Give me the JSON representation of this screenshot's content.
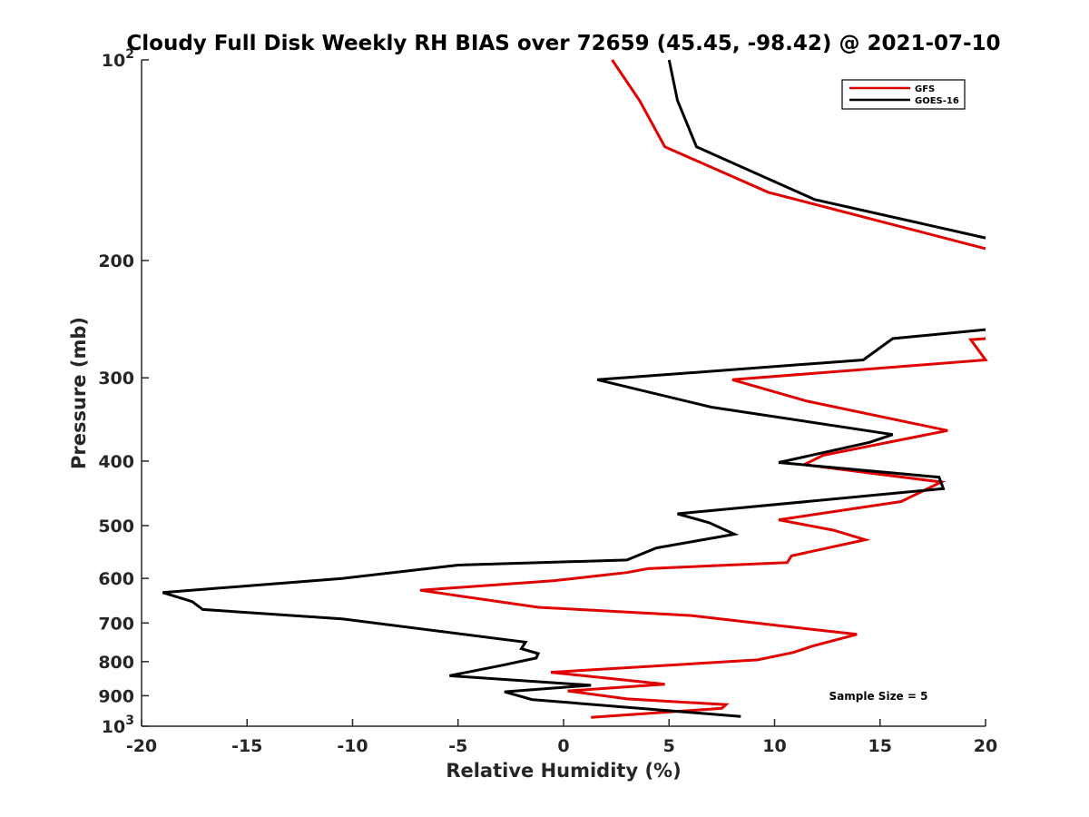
{
  "chart_data": {
    "type": "line",
    "title": "Cloudy Full Disk Weekly RH BIAS over 72659 (45.45, -98.42) @ 2021-07-10",
    "xlabel": "Relative Humidity (%)",
    "ylabel": "Pressure (mb)",
    "xlim": [
      -20,
      20
    ],
    "ylim": [
      100,
      1000
    ],
    "y_scale": "log",
    "y_reversed": true,
    "grid": false,
    "legend_position": "top-right",
    "x_ticks": [
      -20,
      -15,
      -10,
      -5,
      0,
      5,
      10,
      15,
      20
    ],
    "x_tick_labels": [
      "-20",
      "-15",
      "-10",
      "-5",
      "0",
      "5",
      "10",
      "15",
      "20"
    ],
    "y_ticks": [
      100,
      200,
      300,
      400,
      500,
      600,
      700,
      800,
      900,
      1000
    ],
    "y_tick_labels": [
      "10^2",
      "200",
      "300",
      "400",
      "500",
      "600",
      "700",
      "800",
      "900",
      "10^3"
    ],
    "annotation": "Sample Size = 5",
    "series": [
      {
        "name": "GFS",
        "color": "#e00000",
        "points": [
          [
            2.3,
            100
          ],
          [
            3.6,
            115
          ],
          [
            4.8,
            135
          ],
          [
            9.7,
            158
          ],
          [
            20.0,
            192
          ],
          [
            null,
            null
          ],
          [
            20.0,
            262
          ],
          [
            19.3,
            263
          ],
          [
            20.0,
            282
          ],
          [
            8.0,
            302
          ],
          [
            11.5,
            325
          ],
          [
            18.2,
            360
          ],
          [
            12.3,
            392
          ],
          [
            11.4,
            405
          ],
          [
            17.9,
            430
          ],
          [
            16.0,
            460
          ],
          [
            10.2,
            490
          ],
          [
            12.8,
            508
          ],
          [
            14.3,
            525
          ],
          [
            10.8,
            555
          ],
          [
            10.6,
            568
          ],
          [
            4.0,
            580
          ],
          [
            3.0,
            588
          ],
          [
            -0.5,
            605
          ],
          [
            -6.8,
            625
          ],
          [
            -1.2,
            663
          ],
          [
            6.0,
            682
          ],
          [
            10.0,
            705
          ],
          [
            13.9,
            728
          ],
          [
            11.8,
            758
          ],
          [
            10.9,
            775
          ],
          [
            9.2,
            795
          ],
          [
            -0.6,
            830
          ],
          [
            4.8,
            865
          ],
          [
            0.2,
            885
          ],
          [
            3.0,
            910
          ],
          [
            7.7,
            928
          ],
          [
            7.5,
            940
          ],
          [
            1.3,
            970
          ]
        ]
      },
      {
        "name": "GOES-16",
        "color": "#000000",
        "points": [
          [
            5.0,
            100
          ],
          [
            5.4,
            115
          ],
          [
            6.3,
            135
          ],
          [
            11.9,
            162
          ],
          [
            20.0,
            185
          ],
          [
            null,
            null
          ],
          [
            20.0,
            254
          ],
          [
            15.6,
            262
          ],
          [
            14.2,
            282
          ],
          [
            1.6,
            302
          ],
          [
            7.0,
            332
          ],
          [
            15.6,
            365
          ],
          [
            14.5,
            375
          ],
          [
            10.2,
            402
          ],
          [
            17.8,
            423
          ],
          [
            18.0,
            440
          ],
          [
            5.4,
            480
          ],
          [
            6.9,
            495
          ],
          [
            8.1,
            515
          ],
          [
            4.4,
            540
          ],
          [
            3.0,
            563
          ],
          [
            -5.0,
            573
          ],
          [
            -10.5,
            600
          ],
          [
            -19.0,
            630
          ],
          [
            -17.6,
            650
          ],
          [
            -17.1,
            668
          ],
          [
            -10.5,
            690
          ],
          [
            -1.8,
            748
          ],
          [
            -2.0,
            765
          ],
          [
            -1.2,
            778
          ],
          [
            -1.3,
            790
          ],
          [
            -2.9,
            810
          ],
          [
            -5.4,
            840
          ],
          [
            1.3,
            868
          ],
          [
            -2.8,
            888
          ],
          [
            -1.5,
            912
          ],
          [
            8.4,
            967
          ]
        ]
      }
    ]
  }
}
